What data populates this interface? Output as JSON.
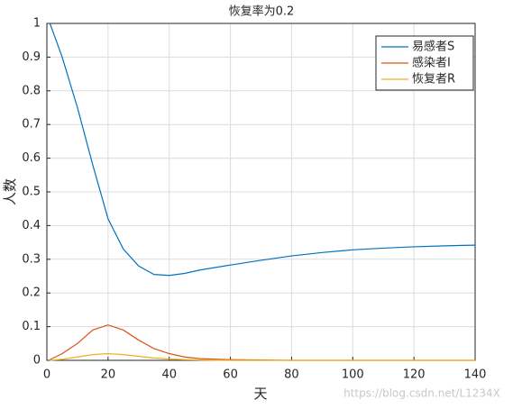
{
  "chart_data": {
    "type": "line",
    "title": "恢复率为0.2",
    "x_label": "天",
    "y_label": "人数",
    "x": [
      1,
      5,
      10,
      15,
      20,
      25,
      30,
      35,
      40,
      45,
      50,
      60,
      70,
      80,
      90,
      100,
      110,
      120,
      130,
      140
    ],
    "series": [
      {
        "name": "易感者S",
        "color": "#0072bd",
        "values": [
          1.0,
          0.9,
          0.75,
          0.58,
          0.42,
          0.33,
          0.28,
          0.255,
          0.252,
          0.258,
          0.268,
          0.283,
          0.297,
          0.31,
          0.32,
          0.328,
          0.333,
          0.337,
          0.34,
          0.342
        ]
      },
      {
        "name": "感染者I",
        "color": "#d95319",
        "values": [
          0.002,
          0.02,
          0.05,
          0.09,
          0.105,
          0.09,
          0.06,
          0.035,
          0.02,
          0.01,
          0.005,
          0.002,
          0.001,
          0,
          0,
          0,
          0,
          0,
          0,
          0
        ]
      },
      {
        "name": "恢复者R",
        "color": "#edb120",
        "values": [
          0,
          0.003,
          0.01,
          0.017,
          0.02,
          0.017,
          0.012,
          0.007,
          0.004,
          0.002,
          0.001,
          0,
          0,
          0,
          0,
          0,
          0,
          0,
          0,
          0
        ]
      }
    ],
    "xlim": [
      0,
      140
    ],
    "xticks": [
      0,
      20,
      40,
      60,
      80,
      100,
      120,
      140
    ],
    "ylim": [
      0,
      1
    ],
    "yticks": [
      0,
      0.1,
      0.2,
      0.3,
      0.4,
      0.5,
      0.6,
      0.7,
      0.8,
      0.9,
      1
    ],
    "grid": true,
    "legend_position": "top-right",
    "watermark": "https://blog.csdn.net/L1234X"
  }
}
